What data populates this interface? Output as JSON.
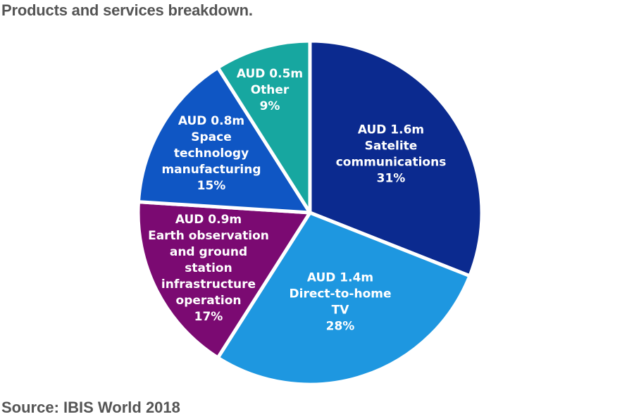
{
  "chart_data": {
    "type": "pie",
    "title": "Products and services breakdown.",
    "source": "Source: IBIS World 2018",
    "slices": [
      {
        "amount": "AUD 1.6m",
        "name_lines": [
          "Satelite",
          "communications"
        ],
        "percent_label": "31%",
        "value": 31,
        "color": "#0b2a8f"
      },
      {
        "amount": "AUD 1.4m",
        "name_lines": [
          "Direct-to-home",
          "TV"
        ],
        "percent_label": "28%",
        "value": 28,
        "color": "#1e97e0"
      },
      {
        "amount": "AUD 0.9m",
        "name_lines": [
          "Earth observation",
          "and ground",
          "station",
          "infrastructure",
          "operation"
        ],
        "percent_label": "17%",
        "value": 17,
        "color": "#7b0a72"
      },
      {
        "amount": "AUD 0.8m",
        "name_lines": [
          "Space",
          "technology",
          "manufacturing"
        ],
        "percent_label": "15%",
        "value": 15,
        "color": "#0f56c4"
      },
      {
        "amount": "AUD 0.5m",
        "name_lines": [
          "Other"
        ],
        "percent_label": "9%",
        "value": 9,
        "color": "#17a7a0"
      }
    ]
  }
}
